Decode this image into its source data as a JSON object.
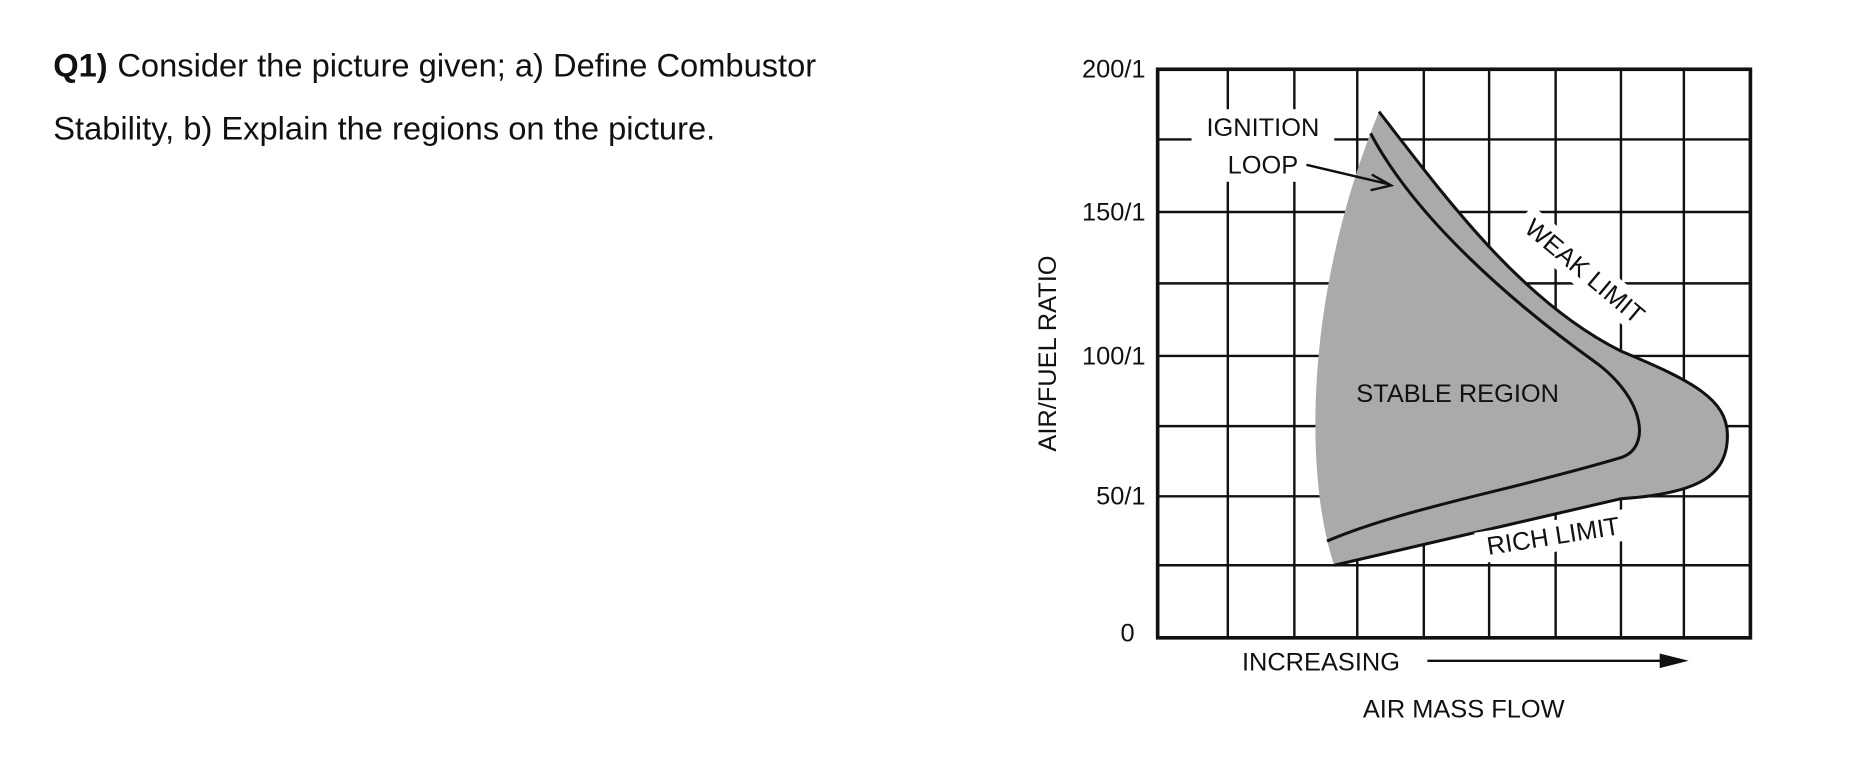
{
  "question": {
    "number": "Q1)",
    "lines": [
      "Consider the picture given; a) Define Combustor",
      "Stability, b) Explain the regions on the picture."
    ]
  },
  "figure": {
    "y_axis_label": "AIR/FUEL RATIO",
    "y_tick_labels": [
      "200/1",
      "150/1",
      "100/1",
      "50/1",
      "0"
    ],
    "x_axis_label_top": "INCREASING",
    "x_axis_label_bottom": "AIR MASS FLOW",
    "ignition_label": [
      "IGNITION",
      "LOOP"
    ],
    "weak_limit": "WEAK LIMIT",
    "rich_limit": "RICH LIMIT",
    "stable_region": "STABLE REGION"
  }
}
